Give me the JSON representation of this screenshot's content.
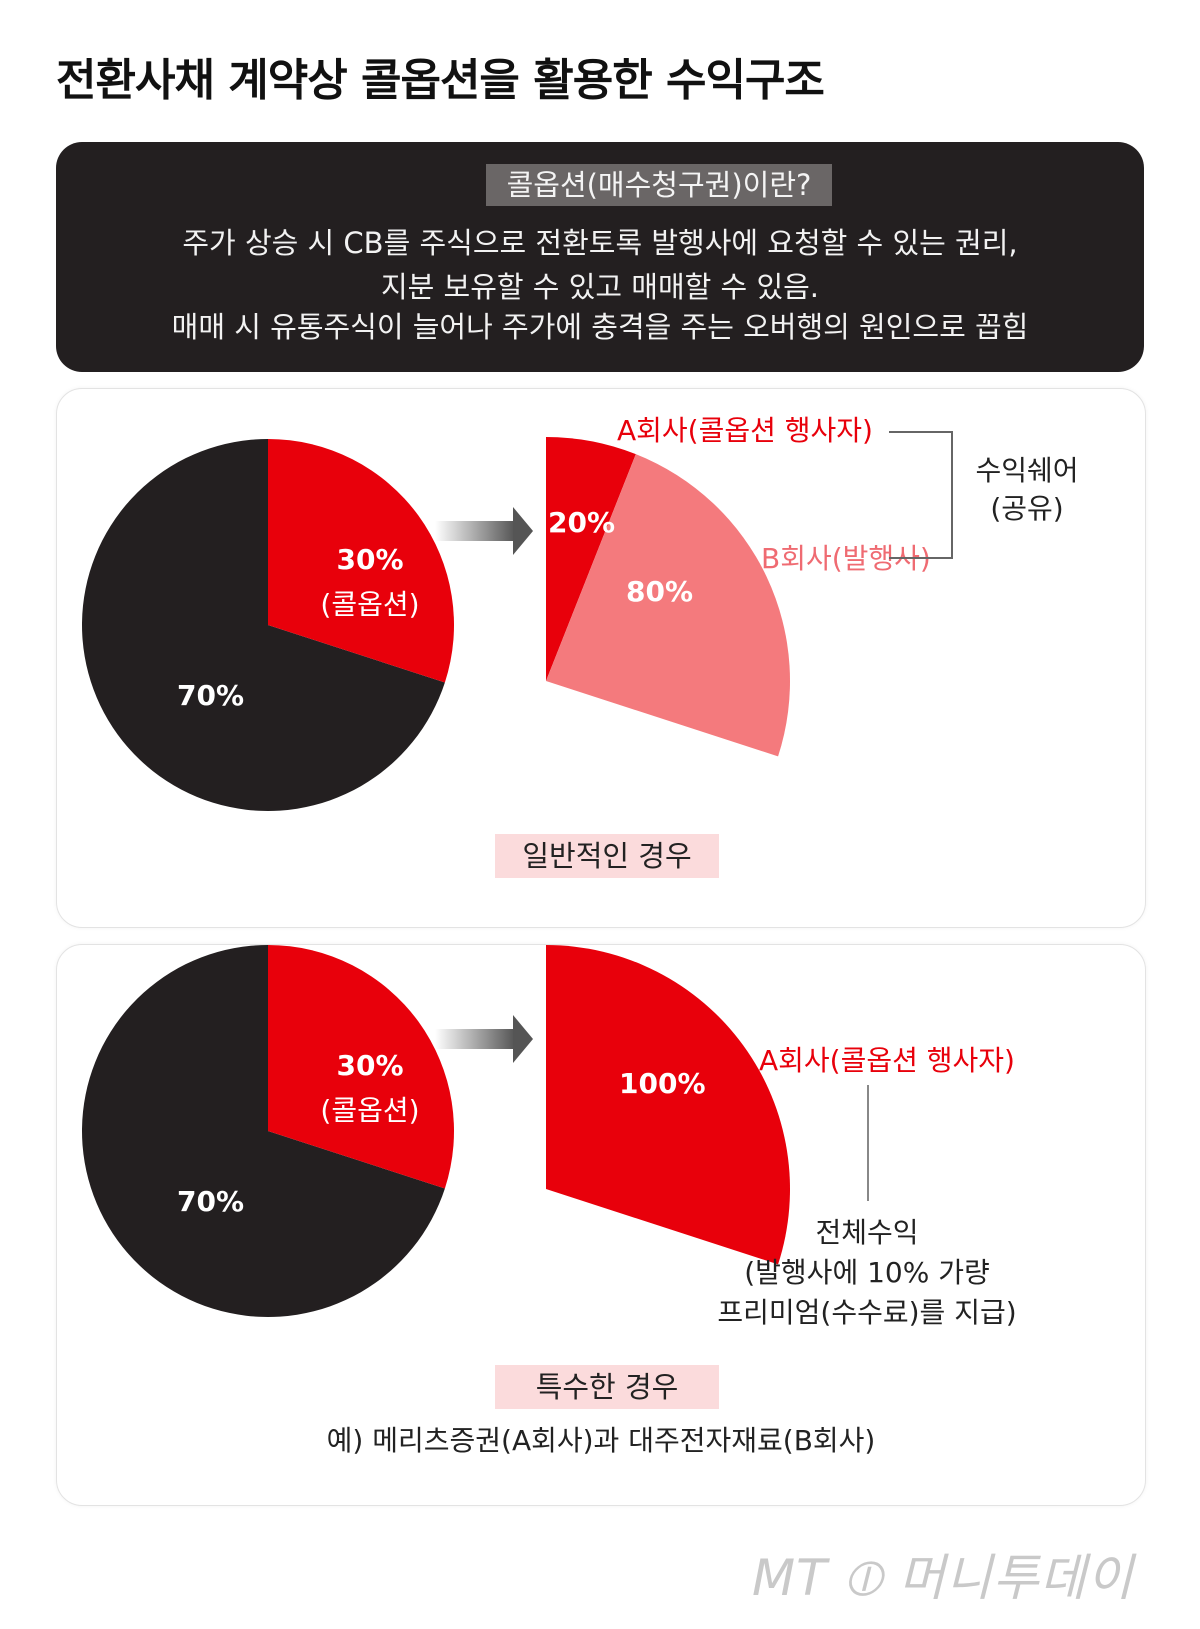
{
  "title": "전환사채 계약상 콜옵션을 활용한 수익구조",
  "info": {
    "heading": "콜옵션(매수청구권)이란?",
    "lines": [
      "주가 상승 시 CB를 주식으로 전환토록 발행사에 요청할 수 있는 권리,",
      "지분 보유할 수 있고 매매할 수 있음.",
      "매매 시 유통주식이 늘어나 주가에 충격을 주는 오버행의 원인으로 꼽힘"
    ]
  },
  "colors": {
    "dark": "#231f20",
    "red": "#e8000b",
    "pink": "#f47a7d"
  },
  "chart_data": [
    {
      "type": "pie",
      "caption": "일반적인 경우",
      "main_pie": {
        "slices": [
          {
            "label": "70%",
            "value": 70
          },
          {
            "label": "30%",
            "sublabel": "(콜옵션)",
            "value": 30
          }
        ]
      },
      "breakdown": {
        "slices": [
          {
            "label": "20%",
            "value": 20,
            "legend": "A회사(콜옵션 행사자)"
          },
          {
            "label": "80%",
            "value": 80,
            "legend": "B회사(발행사)"
          }
        ]
      },
      "annotation": [
        "수익쉐어",
        "(공유)"
      ]
    },
    {
      "type": "pie",
      "caption": "특수한 경우",
      "main_pie": {
        "slices": [
          {
            "label": "70%",
            "value": 70
          },
          {
            "label": "30%",
            "sublabel": "(콜옵션)",
            "value": 30
          }
        ]
      },
      "breakdown": {
        "slices": [
          {
            "label": "100%",
            "value": 100,
            "legend": "A회사(콜옵션 행사자)"
          }
        ]
      },
      "annotation": [
        "전체수익",
        "(발행사에 10% 가량",
        "프리미엄(수수료)를 지급)"
      ],
      "example": "예) 메리츠증권(A회사)과 대주전자재료(B회사)"
    }
  ],
  "logo": "MT ⦶ 머니투데이"
}
